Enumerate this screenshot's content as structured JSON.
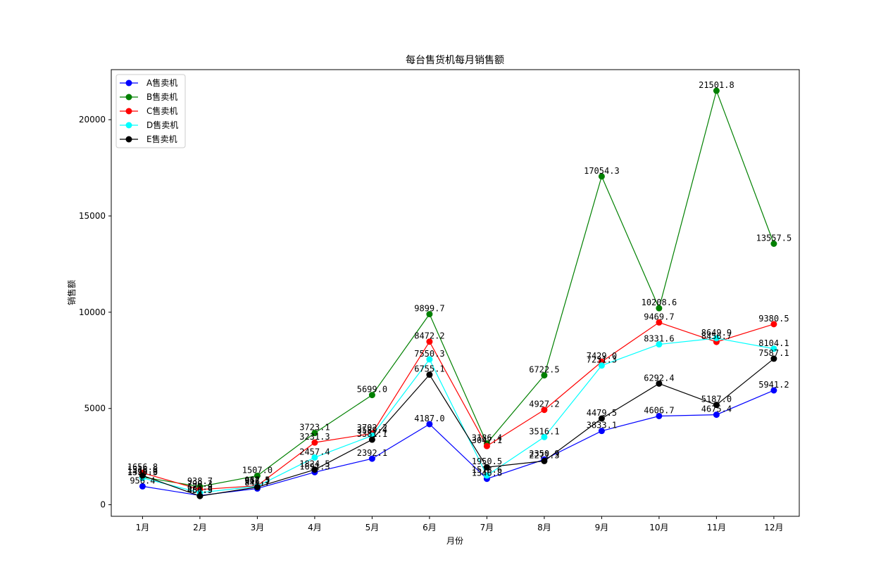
{
  "chart_data": {
    "type": "line",
    "title": "每台售货机每月销售额",
    "xlabel": "月份",
    "ylabel": "销售额",
    "categories": [
      "1月",
      "2月",
      "3月",
      "4月",
      "5月",
      "6月",
      "7月",
      "8月",
      "9月",
      "10月",
      "11月",
      "12月"
    ],
    "ylim": [
      -600,
      22600
    ],
    "yticks": [
      0,
      5000,
      10000,
      15000,
      20000
    ],
    "grid": false,
    "legend_position": "top-left",
    "series": [
      {
        "name": "A售卖机",
        "color": "#0000ff",
        "values": [
          956.4,
          480.5,
          841.7,
          1691.3,
          2392.1,
          4187.0,
          1346.8,
          2350.9,
          3833.1,
          4606.7,
          4675.4,
          5941.2
        ]
      },
      {
        "name": "B售卖机",
        "color": "#008000",
        "values": [
          1435.6,
          938.7,
          1507.0,
          3723.1,
          5699.0,
          9899.7,
          3186.4,
          6722.5,
          17054.3,
          10208.6,
          21501.8,
          13557.5
        ]
      },
      {
        "name": "C售卖机",
        "color": "#ff0000",
        "values": [
          1656.8,
          790.3,
          987.5,
          3231.3,
          3702.2,
          8472.2,
          3047.1,
          4927.2,
          7429.0,
          9469.7,
          8456.7,
          9380.5
        ]
      },
      {
        "name": "D售卖机",
        "color": "#00ffff",
        "values": [
          1390.3,
          625.9,
          962.5,
          2457.4,
          3589.4,
          7550.3,
          1518.6,
          3516.1,
          7231.3,
          8331.6,
          8649.9,
          8104.1
        ]
      },
      {
        "name": "E售卖机",
        "color": "#000000",
        "values": [
          1516.6,
          451.9,
          916.7,
          1824.5,
          3381.1,
          6755.1,
          1950.5,
          2271.3,
          4479.5,
          6292.4,
          5187.0,
          7587.1
        ]
      }
    ]
  }
}
